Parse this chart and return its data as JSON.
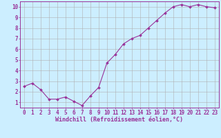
{
  "x": [
    0,
    1,
    2,
    3,
    4,
    5,
    6,
    7,
    8,
    9,
    10,
    11,
    12,
    13,
    14,
    15,
    16,
    17,
    18,
    19,
    20,
    21,
    22,
    23
  ],
  "y": [
    2.5,
    2.8,
    2.2,
    1.3,
    1.3,
    1.5,
    1.1,
    0.7,
    1.6,
    2.4,
    4.7,
    5.5,
    6.5,
    7.0,
    7.3,
    8.0,
    8.7,
    9.4,
    10.0,
    10.2,
    10.0,
    10.2,
    10.0,
    9.9
  ],
  "line_color": "#993399",
  "marker": "D",
  "marker_size": 2,
  "line_width": 0.8,
  "xlabel": "Windchill (Refroidissement éolien,°C)",
  "xlabel_fontsize": 6,
  "ylabel_ticks": [
    1,
    2,
    3,
    4,
    5,
    6,
    7,
    8,
    9,
    10
  ],
  "xtick_labels": [
    "0",
    "1",
    "2",
    "3",
    "4",
    "5",
    "6",
    "7",
    "8",
    "9",
    "10",
    "11",
    "12",
    "13",
    "14",
    "15",
    "16",
    "17",
    "18",
    "19",
    "20",
    "21",
    "22",
    "23"
  ],
  "xlim": [
    -0.5,
    23.5
  ],
  "ylim": [
    0.5,
    10.5
  ],
  "bg_color": "#cceeff",
  "grid_color": "#b0b0b0",
  "tick_color": "#993399",
  "tick_fontsize": 5.5,
  "tick_label_color": "#993399"
}
